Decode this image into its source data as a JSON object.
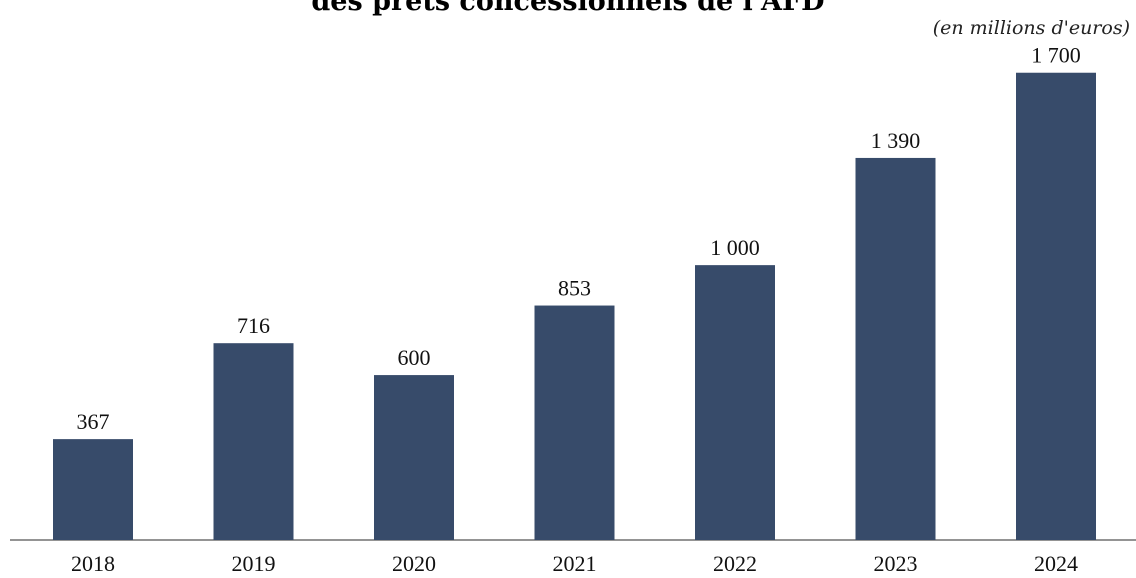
{
  "chart_data": {
    "type": "bar",
    "title": "des prêts concessionnels de l'AFD",
    "unit_note": "(en millions d'euros)",
    "categories": [
      "2018",
      "2019",
      "2020",
      "2021",
      "2022",
      "2023",
      "2024"
    ],
    "values": [
      367,
      716,
      600,
      853,
      1000,
      1390,
      1700
    ],
    "value_labels": [
      "367",
      "716",
      "600",
      "853",
      "1 000",
      "1 390",
      "1 700"
    ],
    "bar_color": "#374b6a",
    "ylim": [
      0,
      1830
    ],
    "grid": false,
    "legend": "none"
  }
}
